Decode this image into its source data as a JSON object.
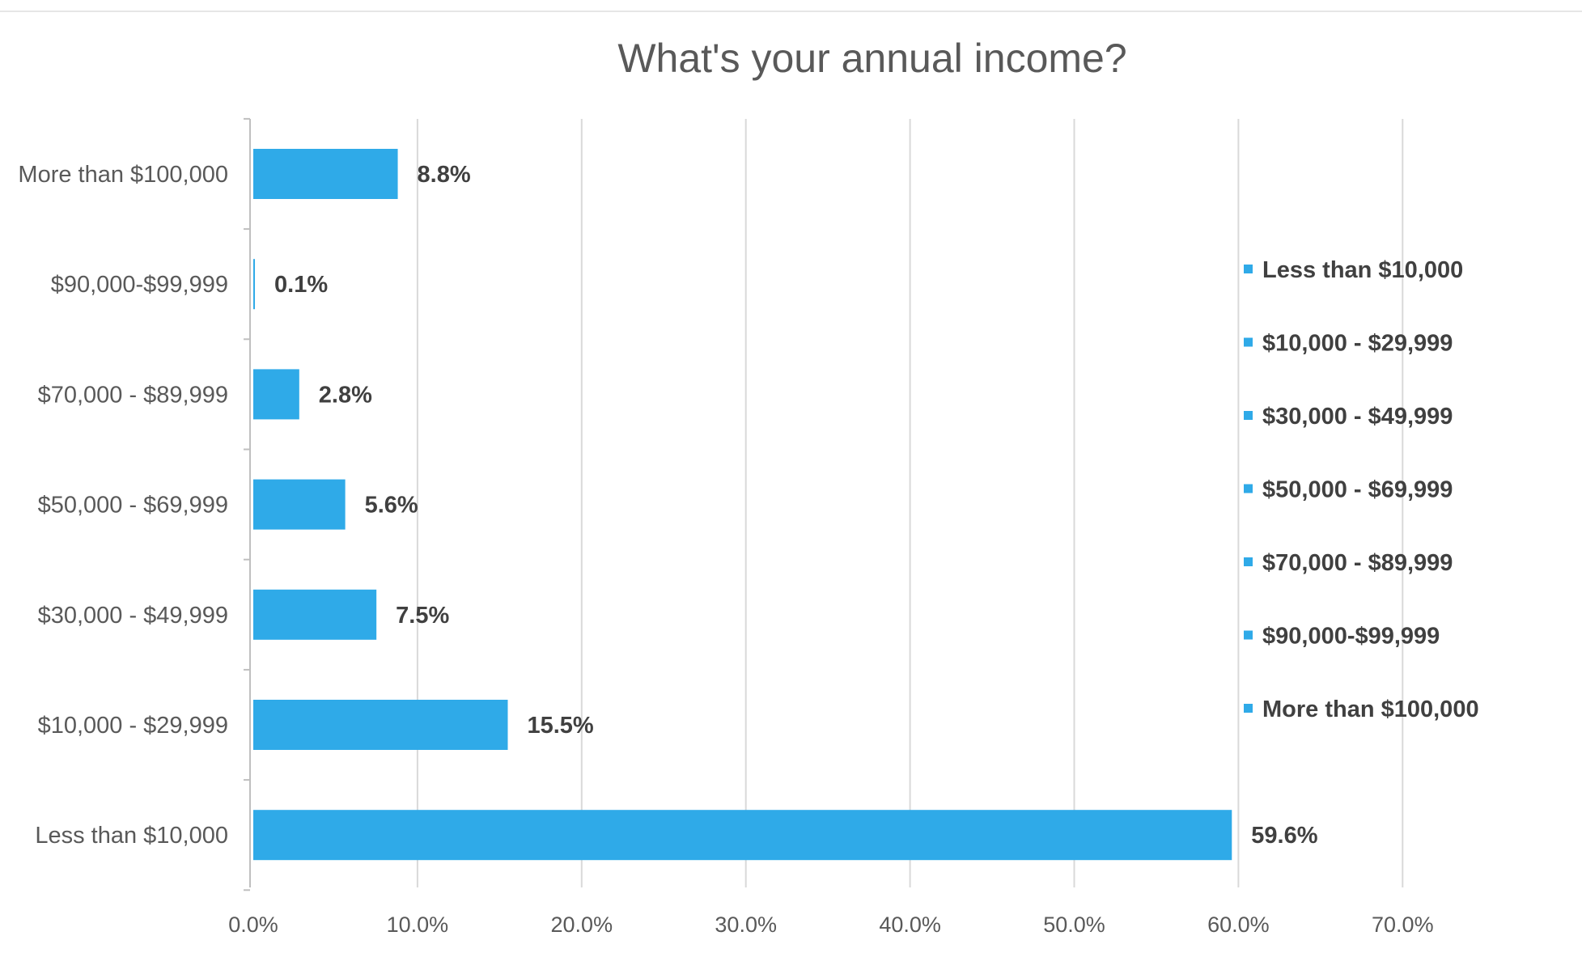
{
  "chart_data": {
    "type": "bar",
    "orientation": "horizontal",
    "title": "What's your annual income?",
    "categories": [
      "More than $100,000",
      "$90,000-$99,999",
      "$70,000 - $89,999",
      "$50,000 - $69,999",
      "$30,000 - $49,999",
      "$10,000 - $29,999",
      "Less than $10,000"
    ],
    "values": [
      8.8,
      0.1,
      2.8,
      5.6,
      7.5,
      15.5,
      59.6
    ],
    "data_labels": [
      "8.8%",
      "0.1%",
      "2.8%",
      "5.6%",
      "7.5%",
      "15.5%",
      "59.6%"
    ],
    "xlim": [
      0,
      70
    ],
    "x_ticks": [
      "0.0%",
      "10.0%",
      "20.0%",
      "30.0%",
      "40.0%",
      "50.0%",
      "60.0%",
      "70.0%"
    ],
    "xlabel": "",
    "ylabel": "",
    "grid": "vertical",
    "legend": {
      "position": "right",
      "entries": [
        "Less than $10,000",
        "$10,000 - $29,999",
        "$30,000 - $49,999",
        "$50,000 - $69,999",
        "$70,000 - $89,999",
        "$90,000-$99,999",
        "More than $100,000"
      ]
    },
    "colors": {
      "bar": "#2FAAE8",
      "grid": "#D9D9D9",
      "axis": "#BFBFBF"
    }
  }
}
